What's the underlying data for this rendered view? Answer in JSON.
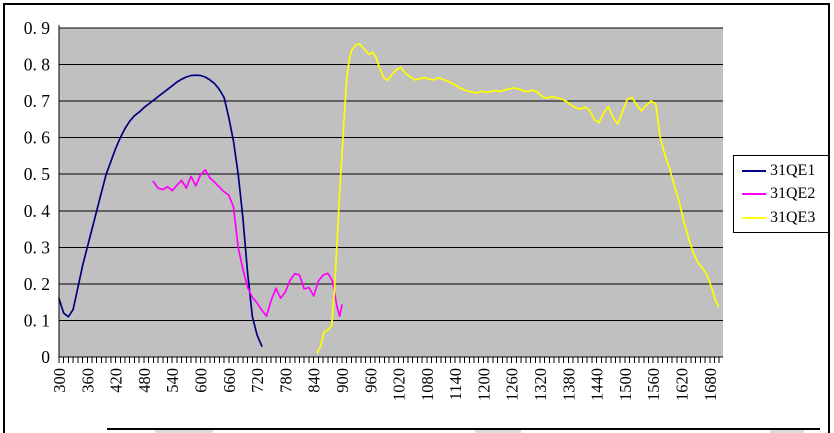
{
  "window": {
    "description": "embedded spreadsheet quantum-efficiency line chart, partially cropped at bottom"
  },
  "colors": {
    "chart_background": "#FFFFFF",
    "plot_background": "#C0C0C0",
    "gridline": "#000000",
    "border": "#000000",
    "series_31QE1": "#000080",
    "series_31QE2": "#FF00FF",
    "series_31QE3": "#FFFF00"
  },
  "legend": {
    "items": [
      {
        "label": "31QE1",
        "color": "#000080"
      },
      {
        "label": "31QE2",
        "color": "#FF00FF"
      },
      {
        "label": "31QE3",
        "color": "#FFFF00"
      }
    ]
  },
  "axes": {
    "y": {
      "min": 0,
      "max": 0.9,
      "step": 0.1,
      "tick_labels": [
        "0",
        "0. 1",
        "0. 2",
        "0. 3",
        "0. 4",
        "0. 5",
        "0. 6",
        "0. 7",
        "0. 8",
        "0. 9"
      ]
    },
    "x": {
      "min": 300,
      "max": 1708,
      "label_step": 60,
      "minor_tick_step": 10,
      "tick_labels": [
        "300",
        "360",
        "420",
        "480",
        "540",
        "600",
        "660",
        "720",
        "780",
        "840",
        "900",
        "960",
        "1020",
        "1080",
        "1140",
        "1200",
        "1260",
        "1320",
        "1380",
        "1440",
        "1500",
        "1560",
        "1620",
        "1680"
      ]
    }
  },
  "chart_data": {
    "type": "line",
    "title": "",
    "xlabel": "",
    "ylabel": "",
    "xlim": [
      300,
      1708
    ],
    "ylim": [
      0,
      0.9
    ],
    "grid": "horizontal",
    "legend_position": "right",
    "series": [
      {
        "name": "31QE1",
        "color": "#000080",
        "points": [
          [
            300,
            0.16
          ],
          [
            310,
            0.12
          ],
          [
            320,
            0.11
          ],
          [
            330,
            0.13
          ],
          [
            340,
            0.19
          ],
          [
            350,
            0.25
          ],
          [
            360,
            0.3
          ],
          [
            370,
            0.35
          ],
          [
            380,
            0.4
          ],
          [
            390,
            0.45
          ],
          [
            400,
            0.5
          ],
          [
            410,
            0.535
          ],
          [
            420,
            0.57
          ],
          [
            430,
            0.6
          ],
          [
            440,
            0.625
          ],
          [
            450,
            0.645
          ],
          [
            460,
            0.66
          ],
          [
            470,
            0.67
          ],
          [
            480,
            0.682
          ],
          [
            490,
            0.692
          ],
          [
            500,
            0.702
          ],
          [
            510,
            0.712
          ],
          [
            520,
            0.722
          ],
          [
            530,
            0.732
          ],
          [
            540,
            0.742
          ],
          [
            550,
            0.752
          ],
          [
            560,
            0.76
          ],
          [
            570,
            0.766
          ],
          [
            580,
            0.77
          ],
          [
            590,
            0.771
          ],
          [
            600,
            0.77
          ],
          [
            610,
            0.766
          ],
          [
            620,
            0.758
          ],
          [
            630,
            0.748
          ],
          [
            640,
            0.732
          ],
          [
            650,
            0.71
          ],
          [
            660,
            0.655
          ],
          [
            670,
            0.59
          ],
          [
            680,
            0.5
          ],
          [
            690,
            0.38
          ],
          [
            700,
            0.23
          ],
          [
            710,
            0.11
          ],
          [
            720,
            0.06
          ],
          [
            730,
            0.03
          ]
        ]
      },
      {
        "name": "31QE2",
        "color": "#FF00FF",
        "points": [
          [
            500,
            0.48
          ],
          [
            510,
            0.462
          ],
          [
            520,
            0.458
          ],
          [
            530,
            0.466
          ],
          [
            540,
            0.455
          ],
          [
            550,
            0.47
          ],
          [
            560,
            0.483
          ],
          [
            570,
            0.462
          ],
          [
            580,
            0.494
          ],
          [
            590,
            0.468
          ],
          [
            600,
            0.498
          ],
          [
            610,
            0.512
          ],
          [
            620,
            0.49
          ],
          [
            630,
            0.478
          ],
          [
            640,
            0.465
          ],
          [
            650,
            0.452
          ],
          [
            660,
            0.443
          ],
          [
            670,
            0.41
          ],
          [
            680,
            0.3
          ],
          [
            690,
            0.24
          ],
          [
            700,
            0.19
          ],
          [
            710,
            0.163
          ],
          [
            720,
            0.148
          ],
          [
            730,
            0.128
          ],
          [
            740,
            0.112
          ],
          [
            750,
            0.155
          ],
          [
            760,
            0.188
          ],
          [
            770,
            0.161
          ],
          [
            780,
            0.178
          ],
          [
            790,
            0.21
          ],
          [
            800,
            0.228
          ],
          [
            810,
            0.224
          ],
          [
            820,
            0.186
          ],
          [
            830,
            0.19
          ],
          [
            840,
            0.167
          ],
          [
            850,
            0.208
          ],
          [
            860,
            0.224
          ],
          [
            870,
            0.229
          ],
          [
            880,
            0.208
          ],
          [
            890,
            0.135
          ],
          [
            895,
            0.112
          ],
          [
            900,
            0.142
          ]
        ]
      },
      {
        "name": "31QE3",
        "color": "#FFFF00",
        "points": [
          [
            848,
            0.012
          ],
          [
            855,
            0.03
          ],
          [
            862,
            0.068
          ],
          [
            870,
            0.074
          ],
          [
            878,
            0.085
          ],
          [
            884,
            0.18
          ],
          [
            890,
            0.32
          ],
          [
            895,
            0.45
          ],
          [
            900,
            0.555
          ],
          [
            905,
            0.66
          ],
          [
            910,
            0.76
          ],
          [
            915,
            0.81
          ],
          [
            920,
            0.838
          ],
          [
            928,
            0.852
          ],
          [
            935,
            0.857
          ],
          [
            942,
            0.85
          ],
          [
            950,
            0.838
          ],
          [
            958,
            0.827
          ],
          [
            965,
            0.834
          ],
          [
            972,
            0.82
          ],
          [
            980,
            0.79
          ],
          [
            988,
            0.765
          ],
          [
            996,
            0.757
          ],
          [
            1005,
            0.77
          ],
          [
            1015,
            0.786
          ],
          [
            1025,
            0.792
          ],
          [
            1035,
            0.776
          ],
          [
            1045,
            0.766
          ],
          [
            1055,
            0.758
          ],
          [
            1065,
            0.761
          ],
          [
            1075,
            0.765
          ],
          [
            1085,
            0.76
          ],
          [
            1095,
            0.758
          ],
          [
            1105,
            0.764
          ],
          [
            1115,
            0.759
          ],
          [
            1125,
            0.754
          ],
          [
            1135,
            0.748
          ],
          [
            1145,
            0.74
          ],
          [
            1155,
            0.733
          ],
          [
            1165,
            0.728
          ],
          [
            1175,
            0.725
          ],
          [
            1185,
            0.722
          ],
          [
            1195,
            0.727
          ],
          [
            1205,
            0.724
          ],
          [
            1215,
            0.726
          ],
          [
            1225,
            0.729
          ],
          [
            1235,
            0.726
          ],
          [
            1245,
            0.73
          ],
          [
            1255,
            0.734
          ],
          [
            1265,
            0.736
          ],
          [
            1275,
            0.733
          ],
          [
            1285,
            0.728
          ],
          [
            1295,
            0.726
          ],
          [
            1305,
            0.73
          ],
          [
            1315,
            0.724
          ],
          [
            1325,
            0.712
          ],
          [
            1335,
            0.708
          ],
          [
            1345,
            0.712
          ],
          [
            1355,
            0.709
          ],
          [
            1365,
            0.706
          ],
          [
            1375,
            0.7
          ],
          [
            1385,
            0.69
          ],
          [
            1395,
            0.682
          ],
          [
            1405,
            0.678
          ],
          [
            1415,
            0.684
          ],
          [
            1425,
            0.675
          ],
          [
            1435,
            0.65
          ],
          [
            1445,
            0.641
          ],
          [
            1455,
            0.668
          ],
          [
            1465,
            0.685
          ],
          [
            1475,
            0.655
          ],
          [
            1485,
            0.637
          ],
          [
            1495,
            0.672
          ],
          [
            1505,
            0.705
          ],
          [
            1515,
            0.71
          ],
          [
            1525,
            0.69
          ],
          [
            1535,
            0.673
          ],
          [
            1545,
            0.688
          ],
          [
            1555,
            0.7
          ],
          [
            1565,
            0.694
          ],
          [
            1575,
            0.6
          ],
          [
            1585,
            0.552
          ],
          [
            1595,
            0.515
          ],
          [
            1605,
            0.468
          ],
          [
            1615,
            0.425
          ],
          [
            1625,
            0.37
          ],
          [
            1635,
            0.325
          ],
          [
            1645,
            0.285
          ],
          [
            1655,
            0.258
          ],
          [
            1665,
            0.243
          ],
          [
            1675,
            0.222
          ],
          [
            1685,
            0.185
          ],
          [
            1692,
            0.155
          ],
          [
            1698,
            0.138
          ]
        ]
      }
    ]
  }
}
